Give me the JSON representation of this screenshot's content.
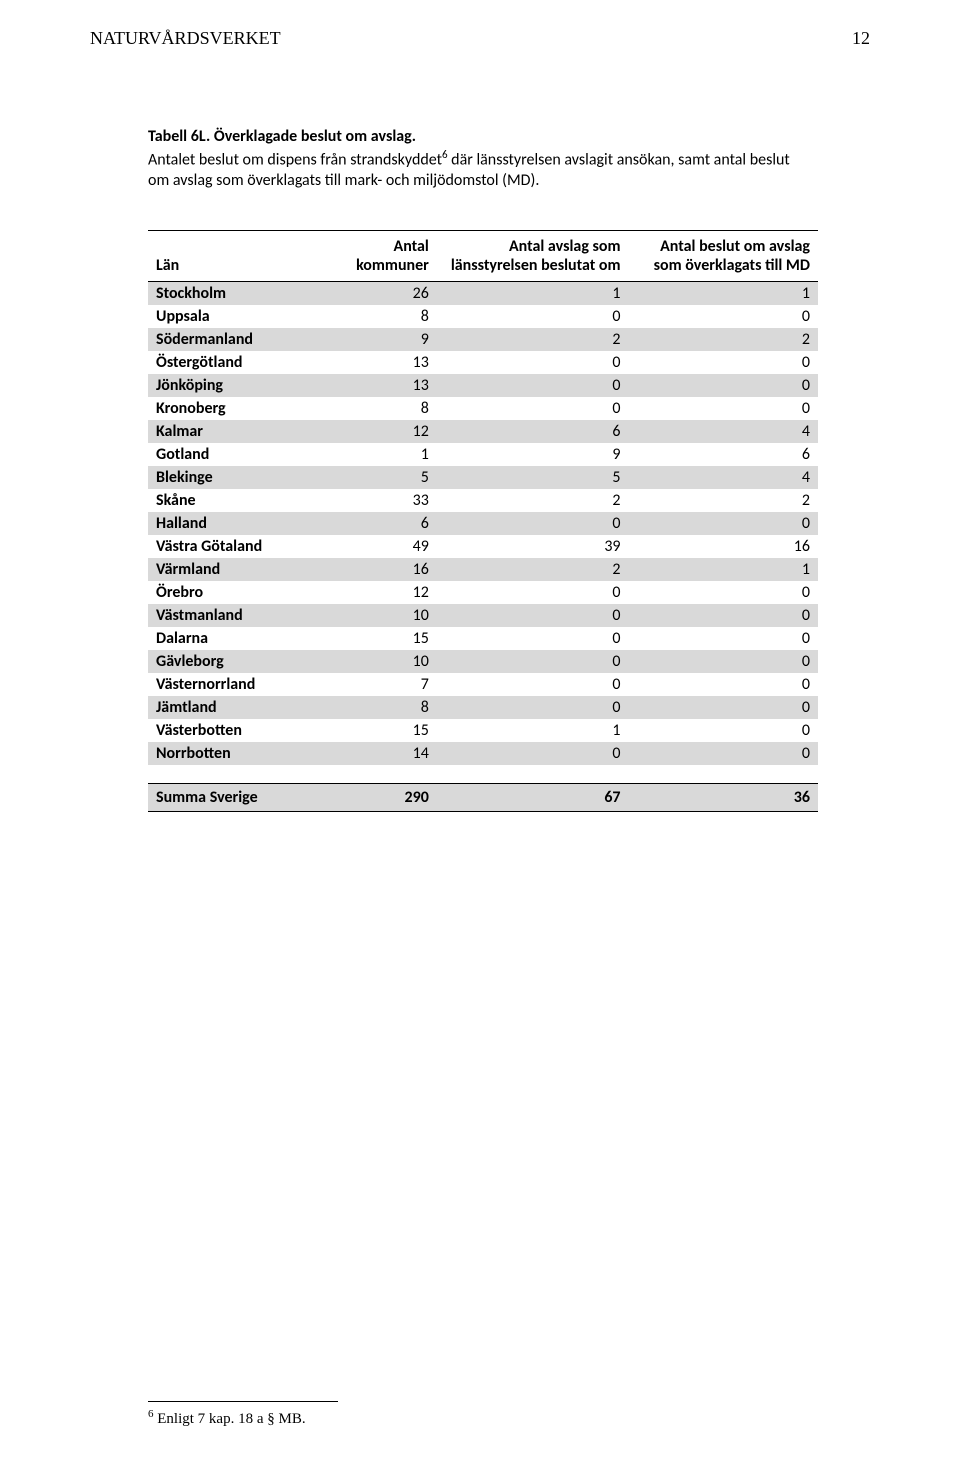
{
  "header": {
    "org": "NATURVÅRDSVERKET",
    "page_number": "12"
  },
  "caption": {
    "title": "Tabell 6L. Överklagade beslut om avslag.",
    "body_pre": "Antalet beslut om dispens från strandskyddet",
    "sup": "6",
    "body_post": " där länsstyrelsen avslagit ansökan, samt antal beslut om avslag som överklagats till mark- och miljödomstol (MD)."
  },
  "table": {
    "columns": {
      "lan": "Län",
      "kommuner": "Antal kommuner",
      "avslag": "Antal avslag som länsstyrelsen beslutat om",
      "beslut": "Antal beslut om avslag som överklagats till MD"
    },
    "rows": [
      {
        "lan": "Stockholm",
        "kommuner": "26",
        "avslag": "1",
        "beslut": "1"
      },
      {
        "lan": "Uppsala",
        "kommuner": "8",
        "avslag": "0",
        "beslut": "0"
      },
      {
        "lan": "Södermanland",
        "kommuner": "9",
        "avslag": "2",
        "beslut": "2"
      },
      {
        "lan": "Östergötland",
        "kommuner": "13",
        "avslag": "0",
        "beslut": "0"
      },
      {
        "lan": "Jönköping",
        "kommuner": "13",
        "avslag": "0",
        "beslut": "0"
      },
      {
        "lan": "Kronoberg",
        "kommuner": "8",
        "avslag": "0",
        "beslut": "0"
      },
      {
        "lan": "Kalmar",
        "kommuner": "12",
        "avslag": "6",
        "beslut": "4"
      },
      {
        "lan": "Gotland",
        "kommuner": "1",
        "avslag": "9",
        "beslut": "6"
      },
      {
        "lan": "Blekinge",
        "kommuner": "5",
        "avslag": "5",
        "beslut": "4"
      },
      {
        "lan": "Skåne",
        "kommuner": "33",
        "avslag": "2",
        "beslut": "2"
      },
      {
        "lan": "Halland",
        "kommuner": "6",
        "avslag": "0",
        "beslut": "0"
      },
      {
        "lan": "Västra Götaland",
        "kommuner": "49",
        "avslag": "39",
        "beslut": "16"
      },
      {
        "lan": "Värmland",
        "kommuner": "16",
        "avslag": "2",
        "beslut": "1"
      },
      {
        "lan": "Örebro",
        "kommuner": "12",
        "avslag": "0",
        "beslut": "0"
      },
      {
        "lan": "Västmanland",
        "kommuner": "10",
        "avslag": "0",
        "beslut": "0"
      },
      {
        "lan": "Dalarna",
        "kommuner": "15",
        "avslag": "0",
        "beslut": "0"
      },
      {
        "lan": "Gävleborg",
        "kommuner": "10",
        "avslag": "0",
        "beslut": "0"
      },
      {
        "lan": "Västernorrland",
        "kommuner": "7",
        "avslag": "0",
        "beslut": "0"
      },
      {
        "lan": "Jämtland",
        "kommuner": "8",
        "avslag": "0",
        "beslut": "0"
      },
      {
        "lan": "Västerbotten",
        "kommuner": "15",
        "avslag": "1",
        "beslut": "0"
      },
      {
        "lan": "Norrbotten",
        "kommuner": "14",
        "avslag": "0",
        "beslut": "0"
      }
    ],
    "summary": {
      "lan": "Summa Sverige",
      "kommuner": "290",
      "avslag": "67",
      "beslut": "36"
    }
  },
  "footnote": {
    "sup": "6",
    "text": " Enligt 7 kap. 18 a § MB."
  },
  "style": {
    "shade_color": "#d9d9d9",
    "border_color": "#000000",
    "font_body": "Times New Roman",
    "font_table": "Calibri"
  }
}
